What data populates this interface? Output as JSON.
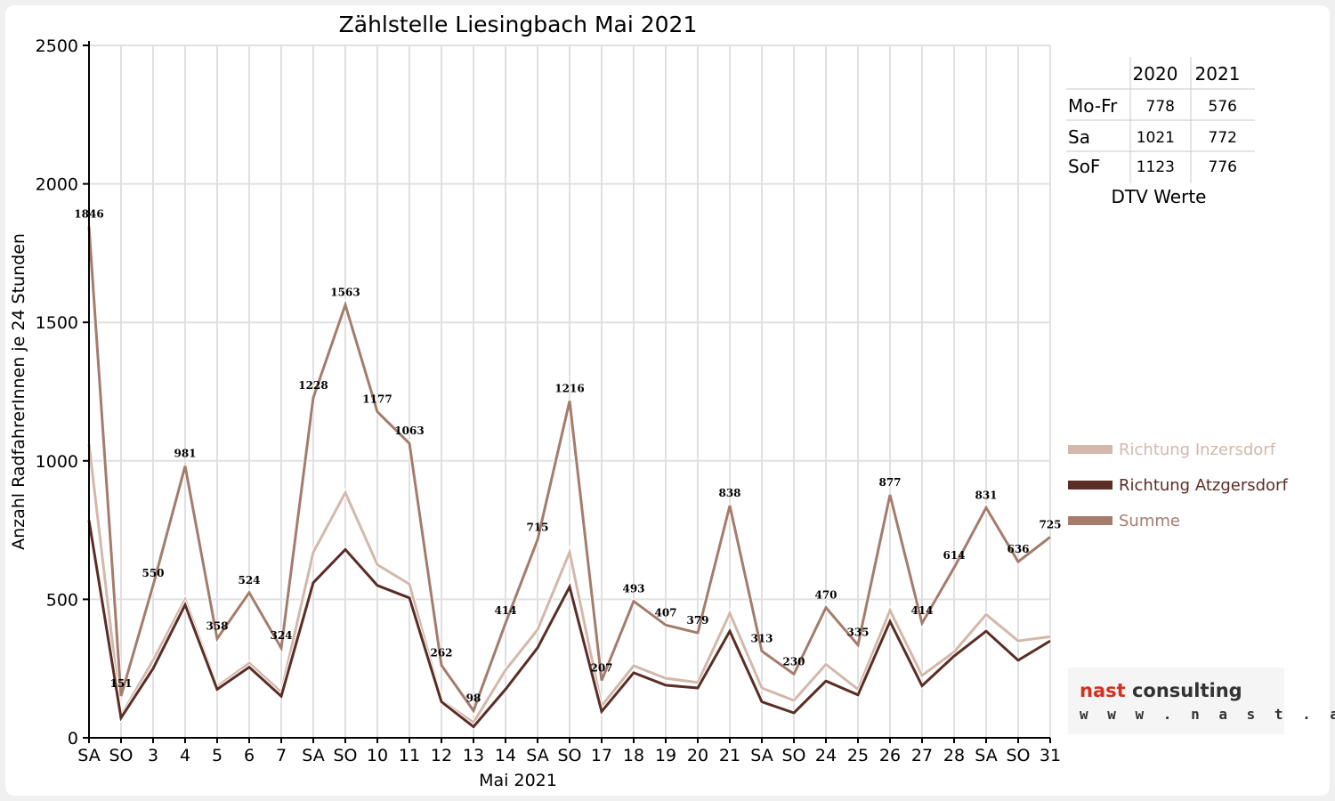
{
  "chart_data": {
    "type": "line",
    "title": "Zählstelle Liesingbach Mai 2021",
    "xlabel": "Mai 2021",
    "ylabel": "Anzahl RadfahrerInnen je 24 Stunden",
    "ylim": [
      0,
      2500
    ],
    "yticks": [
      0,
      500,
      1000,
      1500,
      2000,
      2500
    ],
    "grid": true,
    "legend_position": "right",
    "categories": [
      "SA",
      "SO",
      "3",
      "4",
      "5",
      "6",
      "7",
      "SA",
      "SO",
      "10",
      "11",
      "12",
      "13",
      "14",
      "SA",
      "SO",
      "17",
      "18",
      "19",
      "20",
      "21",
      "SA",
      "SO",
      "24",
      "25",
      "26",
      "27",
      "28",
      "SA",
      "SO",
      "31"
    ],
    "holiday_flags": [
      false,
      true,
      false,
      false,
      false,
      false,
      false,
      false,
      true,
      false,
      false,
      false,
      true,
      false,
      false,
      true,
      false,
      false,
      false,
      false,
      false,
      false,
      true,
      true,
      false,
      false,
      false,
      false,
      false,
      true,
      false
    ],
    "series": [
      {
        "name": "Richtung Inzersdorf",
        "color": "#d3b8ab",
        "values": [
          1060,
          80,
          280,
          500,
          185,
          270,
          165,
          670,
          885,
          625,
          555,
          135,
          55,
          245,
          390,
          670,
          115,
          260,
          215,
          200,
          450,
          180,
          135,
          265,
          175,
          460,
          225,
          310,
          445,
          350,
          365
        ]
      },
      {
        "name": "Richtung Atzgersdorf",
        "color": "#5a2d25",
        "values": [
          785,
          72,
          250,
          480,
          175,
          255,
          150,
          560,
          680,
          550,
          505,
          130,
          40,
          175,
          325,
          545,
          95,
          235,
          190,
          180,
          385,
          130,
          90,
          205,
          155,
          420,
          188,
          295,
          385,
          280,
          350
        ]
      },
      {
        "name": "Summe",
        "color": "#a47c6c",
        "values": [
          1846,
          151,
          550,
          981,
          358,
          524,
          324,
          1228,
          1563,
          1177,
          1063,
          262,
          98,
          414,
          715,
          1216,
          207,
          493,
          407,
          379,
          838,
          313,
          230,
          470,
          335,
          877,
          414,
          614,
          831,
          636,
          725
        ]
      }
    ],
    "data_labels": [
      "1846",
      "151",
      "550",
      "981",
      "358",
      "524",
      "324",
      "1228",
      "1563",
      "1177",
      "1063",
      "262",
      "98",
      "414",
      "715",
      "1216",
      "207",
      "493",
      "407",
      "379",
      "838",
      "313",
      "230",
      "470",
      "335",
      "877",
      "414",
      "614",
      "831",
      "636",
      "725"
    ]
  },
  "dtv_table": {
    "headers": [
      "2020",
      "2021"
    ],
    "rows": [
      {
        "label": "Mo-Fr",
        "v2020": "778",
        "v2021": "576"
      },
      {
        "label": "Sa",
        "v2020": "1021",
        "v2021": "772"
      },
      {
        "label": "SoF",
        "v2020": "1123",
        "v2021": "776"
      }
    ],
    "caption": "DTV Werte"
  },
  "logo": {
    "name_a": "nast ",
    "name_b": "consulting",
    "url": "www.nast.at"
  },
  "colors": {
    "holiday": "#e00000",
    "grid": "#e0e0e0",
    "axis": "#000000"
  }
}
